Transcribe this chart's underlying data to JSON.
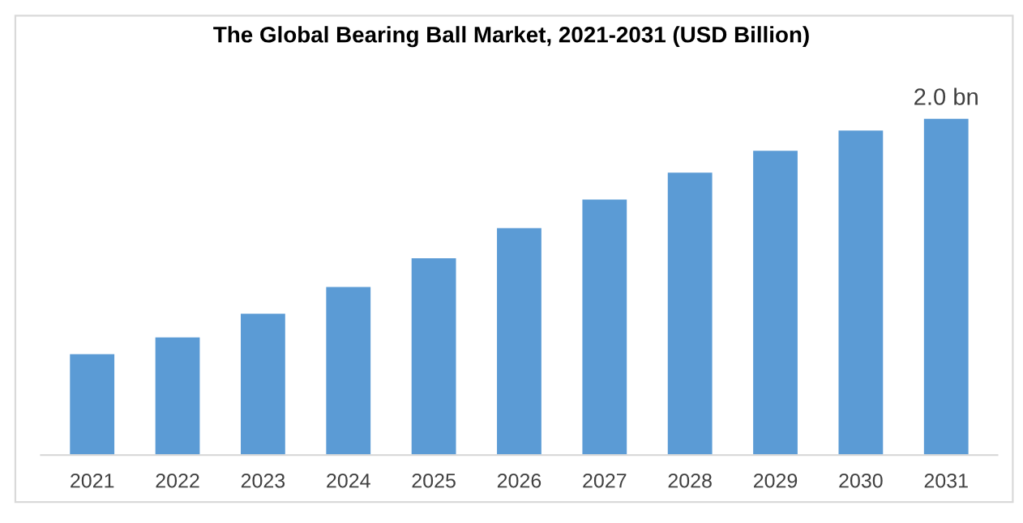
{
  "chart_data": {
    "type": "bar",
    "title": "The Global Bearing Ball Market, 2021-2031 (USD Billion)",
    "categories": [
      "2021",
      "2022",
      "2023",
      "2024",
      "2025",
      "2026",
      "2027",
      "2028",
      "2029",
      "2030",
      "2031"
    ],
    "values": [
      0.6,
      0.7,
      0.84,
      1.0,
      1.17,
      1.35,
      1.52,
      1.68,
      1.81,
      1.93,
      2.0
    ],
    "value_labels": [
      null,
      null,
      null,
      null,
      null,
      null,
      null,
      null,
      null,
      null,
      "2.0 bn"
    ],
    "color": "#5b9bd5"
  }
}
